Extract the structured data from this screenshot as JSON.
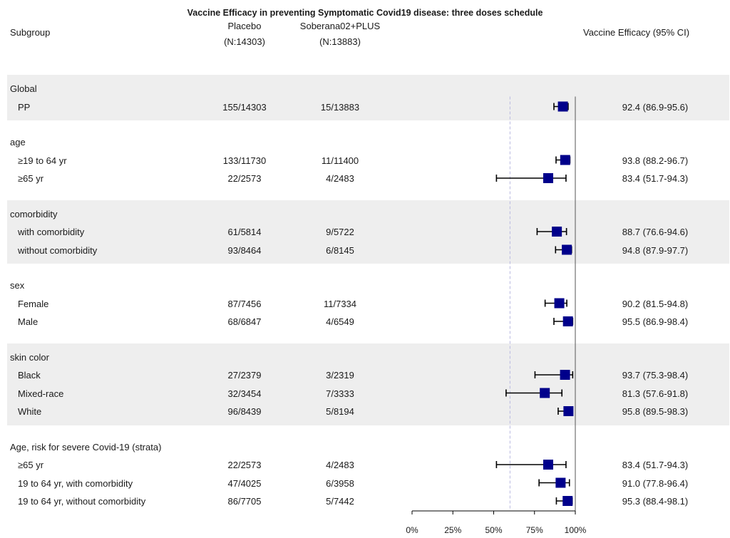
{
  "chart_data": {
    "type": "forest",
    "title": "Vaccine Efficacy in preventing Symptomatic Covid19 disease: three doses schedule",
    "columns": {
      "subgroup": "Subgroup",
      "placebo": "Placebo",
      "placebo_n": "(N:14303)",
      "vaccine": "Soberana02+PLUS",
      "vaccine_n": "(N:13883)",
      "efficacy": "Vaccine Efficacy (95% CI)"
    },
    "xlim": [
      0,
      100
    ],
    "x_ticks": [
      "0%",
      "25%",
      "50%",
      "75%",
      "100%"
    ],
    "reference_line": 60,
    "groups": [
      {
        "name": "Global",
        "rows": [
          {
            "label": "PP",
            "placebo": "155/14303",
            "vaccine": "15/13883",
            "ve": 92.4,
            "lo": 86.9,
            "hi": 95.6,
            "text": "92.4 (86.9-95.6)"
          }
        ]
      },
      {
        "name": "age",
        "rows": [
          {
            "label": "≥19 to 64 yr",
            "placebo": "133/11730",
            "vaccine": "11/11400",
            "ve": 93.8,
            "lo": 88.2,
            "hi": 96.7,
            "text": "93.8 (88.2-96.7)"
          },
          {
            "label": "≥65 yr",
            "placebo": "22/2573",
            "vaccine": "4/2483",
            "ve": 83.4,
            "lo": 51.7,
            "hi": 94.3,
            "text": "83.4 (51.7-94.3)"
          }
        ]
      },
      {
        "name": "comorbidity",
        "rows": [
          {
            "label": "with comorbidity",
            "placebo": "61/5814",
            "vaccine": "9/5722",
            "ve": 88.7,
            "lo": 76.6,
            "hi": 94.6,
            "text": "88.7 (76.6-94.6)"
          },
          {
            "label": "without comorbidity",
            "placebo": "93/8464",
            "vaccine": "6/8145",
            "ve": 94.8,
            "lo": 87.9,
            "hi": 97.7,
            "text": "94.8 (87.9-97.7)"
          }
        ]
      },
      {
        "name": "sex",
        "rows": [
          {
            "label": "Female",
            "placebo": "87/7456",
            "vaccine": "11/7334",
            "ve": 90.2,
            "lo": 81.5,
            "hi": 94.8,
            "text": "90.2 (81.5-94.8)"
          },
          {
            "label": "Male",
            "placebo": "68/6847",
            "vaccine": "4/6549",
            "ve": 95.5,
            "lo": 86.9,
            "hi": 98.4,
            "text": "95.5 (86.9-98.4)"
          }
        ]
      },
      {
        "name": "skin color",
        "rows": [
          {
            "label": "Black",
            "placebo": "27/2379",
            "vaccine": "3/2319",
            "ve": 93.7,
            "lo": 75.3,
            "hi": 98.4,
            "text": "93.7 (75.3-98.4)"
          },
          {
            "label": "Mixed-race",
            "placebo": "32/3454",
            "vaccine": "7/3333",
            "ve": 81.3,
            "lo": 57.6,
            "hi": 91.8,
            "text": "81.3 (57.6-91.8)"
          },
          {
            "label": "White",
            "placebo": "96/8439",
            "vaccine": "5/8194",
            "ve": 95.8,
            "lo": 89.5,
            "hi": 98.3,
            "text": "95.8 (89.5-98.3)"
          }
        ]
      },
      {
        "name": "Age, risk for severe Covid-19 (strata)",
        "rows": [
          {
            "label": "≥65 yr",
            "placebo": "22/2573",
            "vaccine": "4/2483",
            "ve": 83.4,
            "lo": 51.7,
            "hi": 94.3,
            "text": "83.4 (51.7-94.3)"
          },
          {
            "label": "19 to 64 yr, with comorbidity",
            "placebo": "47/4025",
            "vaccine": "6/3958",
            "ve": 91.0,
            "lo": 77.8,
            "hi": 96.4,
            "text": "91.0 (77.8-96.4)"
          },
          {
            "label": "19 to 64 yr, without comorbidity",
            "placebo": "86/7705",
            "vaccine": "5/7442",
            "ve": 95.3,
            "lo": 88.4,
            "hi": 98.1,
            "text": "95.3 (88.4-98.1)"
          }
        ]
      }
    ],
    "marker_color": "#00008b",
    "band_color": "#eeeeee"
  }
}
